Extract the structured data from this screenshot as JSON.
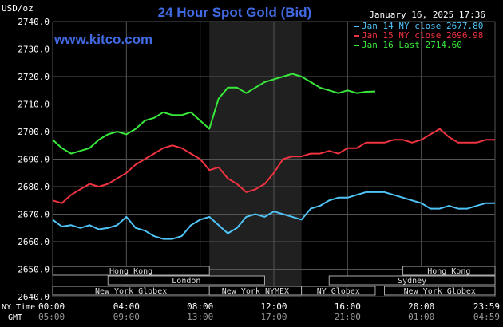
{
  "chart_data": {
    "type": "line",
    "title": "24 Hour Spot Gold (Bid)",
    "ylabel": "USD/oz",
    "timestamp": "January 16, 2025 17:36",
    "watermark": "www.kitco.com",
    "ylim": [
      2640,
      2740
    ],
    "yticks": [
      "2740.0",
      "2730.0",
      "2720.0",
      "2710.0",
      "2700.0",
      "2690.0",
      "2680.0",
      "2670.0",
      "2660.0",
      "2650.0",
      "2640.0"
    ],
    "xticks_ny": [
      "00:00",
      "04:00",
      "08:00",
      "12:00",
      "16:00",
      "20:00",
      "23:59"
    ],
    "xticks_gmt": [
      "05:00",
      "09:00",
      "13:00",
      "17:00",
      "21:00",
      "01:00",
      "04:59"
    ],
    "xlabel_ny": "NY Time",
    "xlabel_gmt": "GMT",
    "grid": true,
    "legend_position": "top-right",
    "highlight_hours": [
      8.5,
      13.5
    ],
    "series": [
      {
        "name": "Jan 14 NY close 2677.80",
        "color": "#4fc3f7",
        "x": [
          0,
          0.5,
          1,
          1.5,
          2,
          2.5,
          3,
          3.5,
          4,
          4.5,
          5,
          5.5,
          6,
          6.5,
          7,
          7.5,
          8,
          8.5,
          9,
          9.5,
          10,
          10.5,
          11,
          11.5,
          12,
          12.5,
          13,
          13.5,
          14,
          14.5,
          15,
          15.5,
          16,
          16.5,
          17,
          17.5,
          18,
          18.5,
          19,
          19.5,
          20,
          20.5,
          21,
          21.5,
          22,
          22.5,
          23,
          23.5,
          24
        ],
        "y": [
          2668,
          2665.5,
          2666,
          2665,
          2666,
          2664.5,
          2665,
          2666,
          2669,
          2665,
          2664,
          2662,
          2661,
          2661,
          2662,
          2666,
          2668,
          2669,
          2666,
          2663,
          2665,
          2669,
          2670,
          2669,
          2671,
          2670,
          2669,
          2668,
          2672,
          2673,
          2675,
          2676,
          2676,
          2677,
          2678,
          2678,
          2678,
          2677,
          2676,
          2675,
          2674,
          2672,
          2672,
          2673,
          2672,
          2672,
          2673,
          2674,
          2674
        ]
      },
      {
        "name": "Jan 15 NY close 2696.98",
        "color": "#ef3340",
        "x": [
          0,
          0.5,
          1,
          1.5,
          2,
          2.5,
          3,
          3.5,
          4,
          4.5,
          5,
          5.5,
          6,
          6.5,
          7,
          7.5,
          8,
          8.5,
          9,
          9.5,
          10,
          10.5,
          11,
          11.5,
          12,
          12.5,
          13,
          13.5,
          14,
          14.5,
          15,
          15.5,
          16,
          16.5,
          17,
          17.5,
          18,
          18.5,
          19,
          19.5,
          20,
          20.5,
          21,
          21.5,
          22,
          22.5,
          23,
          23.5,
          24
        ],
        "y": [
          2675,
          2674,
          2677,
          2679,
          2681,
          2680,
          2681,
          2683,
          2685,
          2688,
          2690,
          2692,
          2694,
          2695,
          2694,
          2692,
          2690,
          2686,
          2687,
          2683,
          2681,
          2678,
          2679,
          2681,
          2685,
          2690,
          2691,
          2691,
          2692,
          2692,
          2693,
          2692,
          2694,
          2694,
          2696,
          2696,
          2696,
          2697,
          2697,
          2696,
          2697,
          2699,
          2701,
          2698,
          2696,
          2696,
          2696,
          2697,
          2697
        ]
      },
      {
        "name": "Jan 16 Last 2714.60",
        "color": "#38e83a",
        "x": [
          0,
          0.5,
          1,
          1.5,
          2,
          2.5,
          3,
          3.5,
          4,
          4.5,
          5,
          5.5,
          6,
          6.5,
          7,
          7.5,
          8,
          8.5,
          9,
          9.5,
          10,
          10.5,
          11,
          11.5,
          12,
          12.5,
          13,
          13.5,
          14,
          14.5,
          15,
          15.5,
          16,
          16.5,
          17,
          17.5
        ],
        "y": [
          2697,
          2694,
          2692,
          2693,
          2694,
          2697,
          2699,
          2700,
          2699,
          2701,
          2704,
          2705,
          2707,
          2706,
          2706,
          2707,
          2704,
          2701,
          2712,
          2716,
          2716,
          2714,
          2716,
          2718,
          2719,
          2720,
          2721,
          2720,
          2718,
          2716,
          2715,
          2714,
          2715,
          2714,
          2714.5,
          2714.6
        ]
      }
    ],
    "sessions": [
      {
        "name": "Hong Kong",
        "start": -1,
        "end": 8.5
      },
      {
        "name": "Hong Kong",
        "start": 19,
        "end": 26
      },
      {
        "name": "London",
        "start": 3,
        "end": 11.5
      },
      {
        "name": "Sydney",
        "start": 15,
        "end": 26
      },
      {
        "name": "New York Globex",
        "start": -1,
        "end": 8.5
      },
      {
        "name": "New York NYMEX",
        "start": 8.5,
        "end": 13.5
      },
      {
        "name": "NY Globex",
        "start": 13.5,
        "end": 17.5
      },
      {
        "name": "New York Globex",
        "start": 18,
        "end": 26
      }
    ]
  }
}
